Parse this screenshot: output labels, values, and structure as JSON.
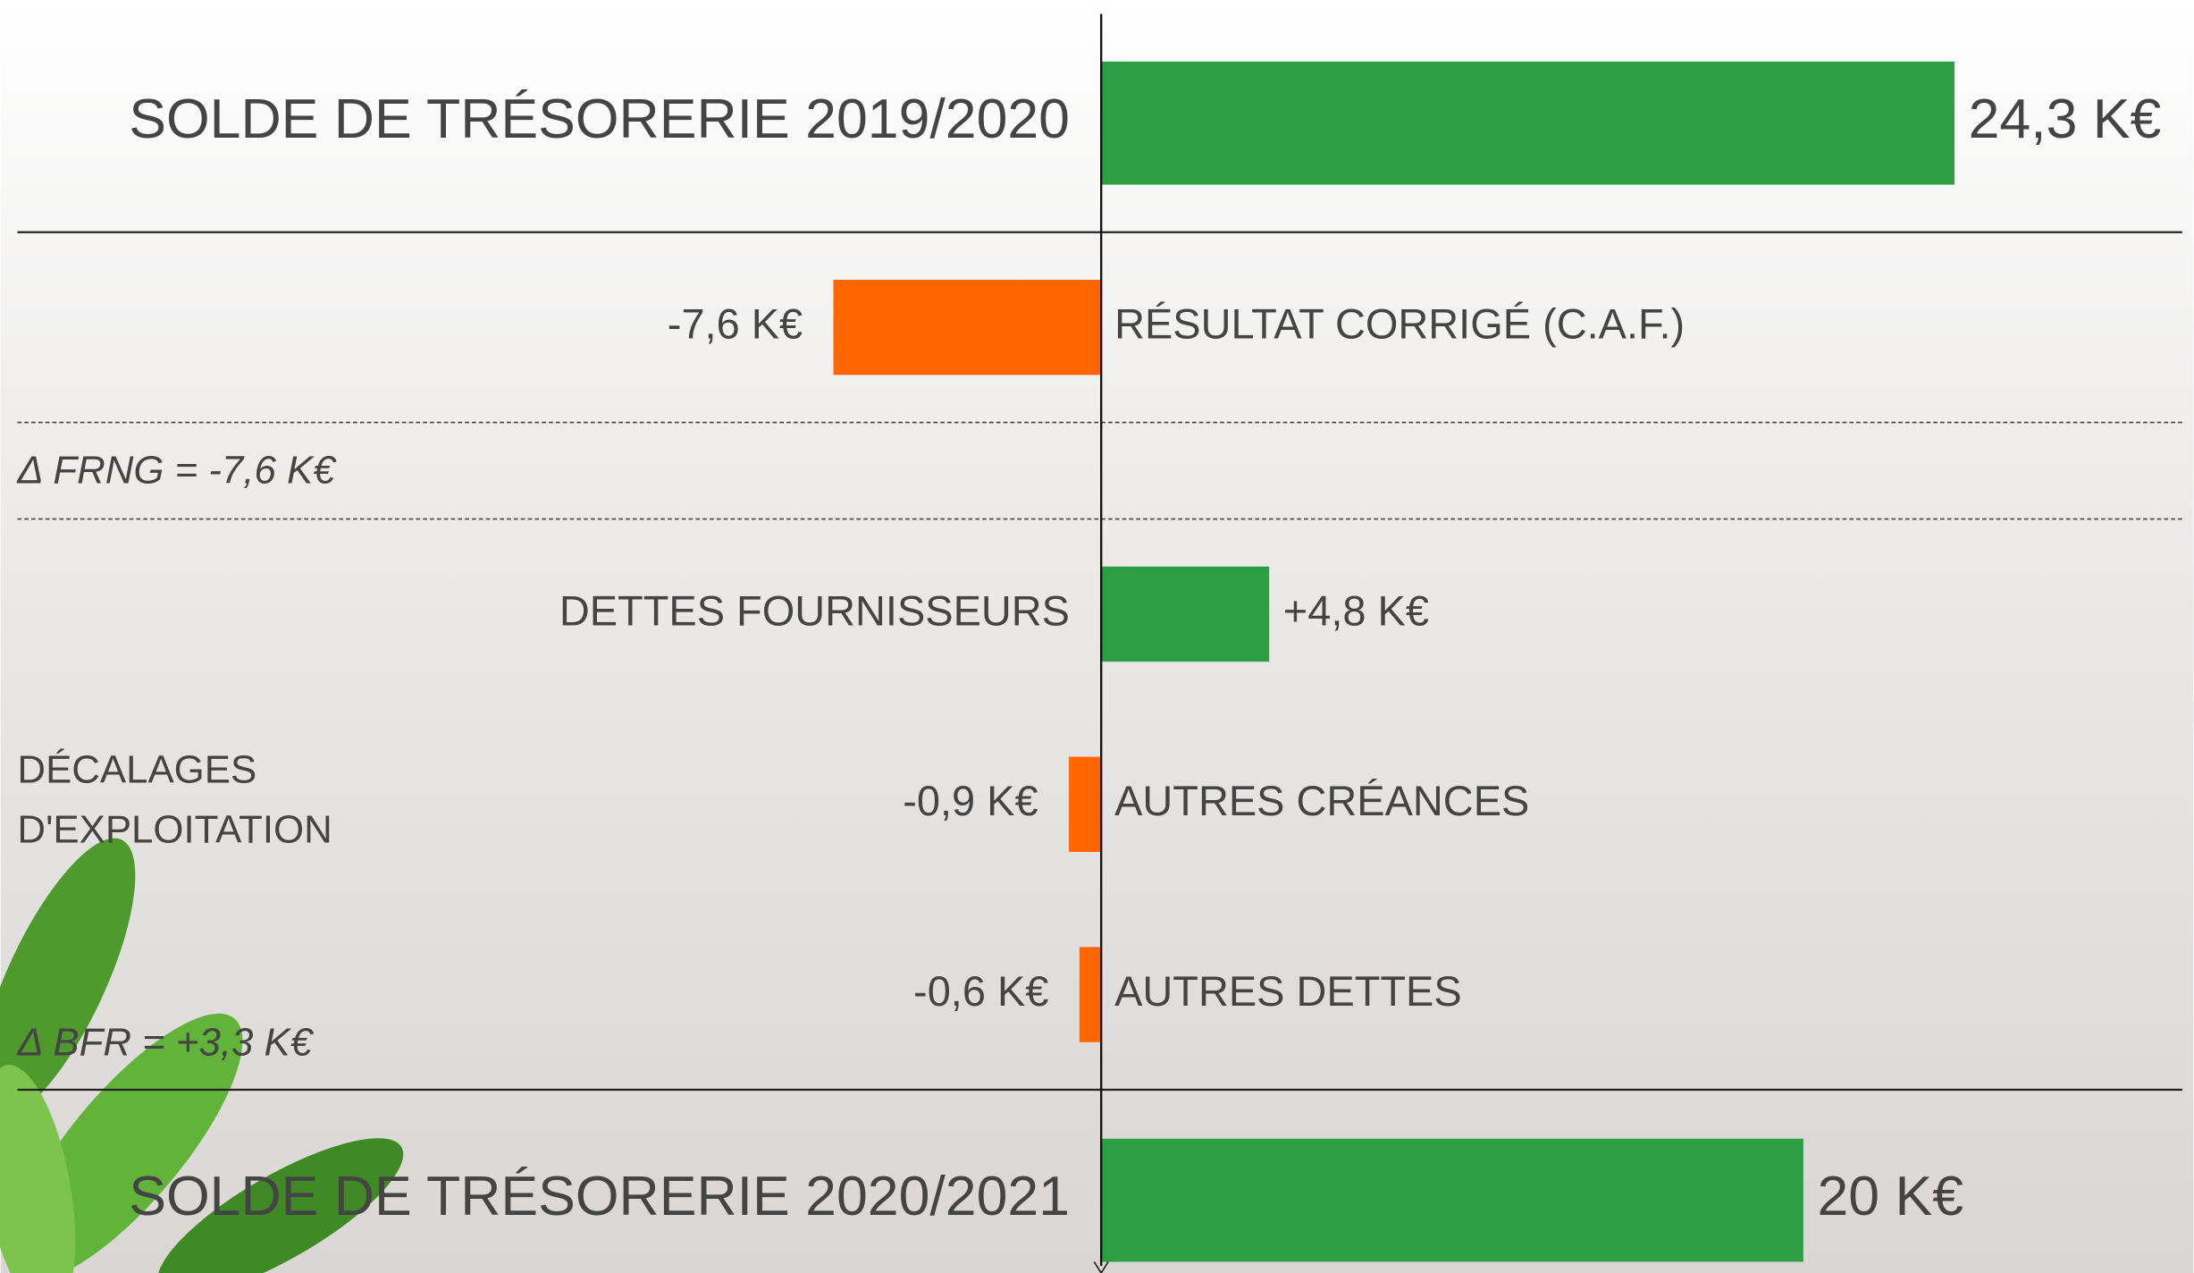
{
  "chart_data": {
    "type": "bar",
    "orientation": "horizontal",
    "categories": [
      "SOLDE DE TRÉSORERIE 2019/2020",
      "RÉSULTAT CORRIGÉ (C.A.F.)",
      "DETTES FOURNISSEURS",
      "AUTRES CRÉANCES",
      "AUTRES DETTES",
      "SOLDE DE TRÉSORERIE 2020/2021"
    ],
    "values": [
      24.3,
      -7.6,
      4.8,
      -0.9,
      -0.6,
      20
    ],
    "value_labels": [
      "24,3 K€",
      "-7,6 K€",
      "+4,8 K€",
      "-0,9 K€",
      "-0,6 K€",
      "20 K€"
    ],
    "colors": [
      "#2e9e44",
      "#ff6600",
      "#2e9e44",
      "#ff6600",
      "#ff6600",
      "#2e9e44"
    ],
    "xlim": [
      -31.3,
      31.1
    ],
    "annotations": {
      "frng": "Δ FRNG = -7,6 K€",
      "decalages": [
        "DÉCALAGES",
        "D'EXPLOITATION"
      ],
      "bfr": "Δ BFR = +3,3 K€"
    }
  }
}
